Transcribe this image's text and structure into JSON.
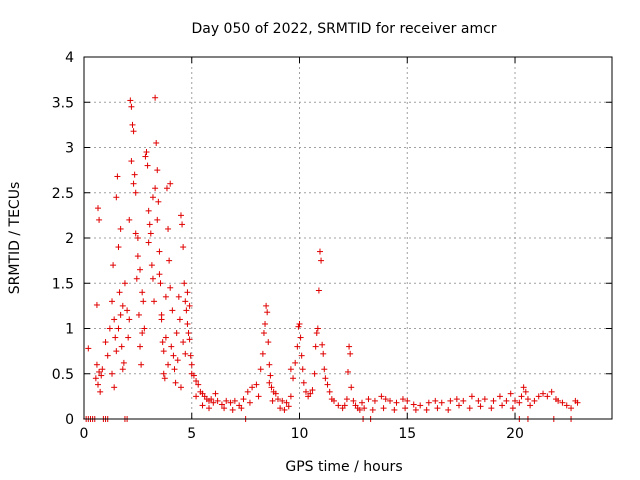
{
  "chart_data": {
    "type": "scatter",
    "title": "Day 050 of 2022, SRMTID for receiver amcr",
    "xlabel": "GPS time / hours",
    "ylabel": "SRMTID / TECUs",
    "xlim": [
      0,
      24.5
    ],
    "ylim": [
      0,
      4
    ],
    "xticks": [
      0,
      5,
      10,
      15,
      20
    ],
    "xtick_labels": [
      "0",
      "5",
      "10",
      "15",
      "20"
    ],
    "yticks": [
      0,
      0.5,
      1,
      1.5,
      2,
      2.5,
      3,
      3.5,
      4
    ],
    "ytick_labels": [
      "0",
      "0.5",
      "1",
      "1.5",
      "2",
      "2.5",
      "3",
      "3.5",
      "4"
    ],
    "grid": true,
    "marker": "plus",
    "series": [
      {
        "name": "SRMTID",
        "color": "#e00000",
        "points": [
          [
            0.2,
            0.78
          ],
          [
            0.1,
            0
          ],
          [
            0.2,
            0
          ],
          [
            0.3,
            0
          ],
          [
            0.4,
            0
          ],
          [
            0.5,
            0
          ],
          [
            0.9,
            0
          ],
          [
            1.0,
            0
          ],
          [
            1.1,
            0
          ],
          [
            1.9,
            0
          ],
          [
            2.0,
            0
          ],
          [
            0.6,
            1.26
          ],
          [
            0.65,
            2.33
          ],
          [
            0.7,
            2.2
          ],
          [
            0.55,
            0.45
          ],
          [
            0.6,
            0.6
          ],
          [
            0.65,
            0.38
          ],
          [
            0.7,
            0.52
          ],
          [
            0.75,
            0.3
          ],
          [
            0.8,
            0.48
          ],
          [
            0.85,
            0.55
          ],
          [
            1.0,
            0.85
          ],
          [
            1.1,
            0.7
          ],
          [
            1.2,
            1.0
          ],
          [
            1.3,
            1.3
          ],
          [
            1.35,
            1.7
          ],
          [
            1.4,
            1.1
          ],
          [
            1.45,
            0.9
          ],
          [
            1.5,
            2.45
          ],
          [
            1.55,
            2.68
          ],
          [
            1.6,
            1.9
          ],
          [
            1.65,
            1.4
          ],
          [
            1.7,
            1.15
          ],
          [
            1.75,
            0.8
          ],
          [
            1.8,
            0.55
          ],
          [
            1.85,
            0.62
          ],
          [
            1.3,
            0.5
          ],
          [
            1.4,
            0.35
          ],
          [
            1.5,
            0.75
          ],
          [
            1.6,
            1.0
          ],
          [
            1.7,
            2.1
          ],
          [
            1.8,
            1.25
          ],
          [
            1.9,
            1.5
          ],
          [
            2.0,
            1.2
          ],
          [
            2.05,
            0.9
          ],
          [
            2.1,
            1.1
          ],
          [
            2.1,
            2.2
          ],
          [
            2.15,
            3.52
          ],
          [
            2.2,
            3.45
          ],
          [
            2.25,
            3.25
          ],
          [
            2.3,
            3.18
          ],
          [
            2.35,
            2.7
          ],
          [
            2.4,
            2.5
          ],
          [
            2.45,
            1.55
          ],
          [
            2.5,
            1.8
          ],
          [
            2.55,
            1.15
          ],
          [
            2.6,
            0.8
          ],
          [
            2.65,
            0.6
          ],
          [
            2.7,
            0.95
          ],
          [
            2.75,
            1.3
          ],
          [
            2.2,
            2.85
          ],
          [
            2.3,
            2.6
          ],
          [
            2.4,
            2.05
          ],
          [
            2.5,
            2.0
          ],
          [
            2.6,
            1.65
          ],
          [
            2.7,
            1.4
          ],
          [
            2.8,
            1.0
          ],
          [
            2.85,
            2.9
          ],
          [
            2.9,
            2.95
          ],
          [
            2.95,
            2.8
          ],
          [
            3.0,
            2.3
          ],
          [
            3.0,
            1.95
          ],
          [
            3.05,
            2.15
          ],
          [
            3.1,
            2.05
          ],
          [
            3.15,
            1.7
          ],
          [
            3.2,
            1.55
          ],
          [
            3.25,
            1.3
          ],
          [
            3.3,
            3.55
          ],
          [
            3.35,
            3.05
          ],
          [
            3.4,
            2.75
          ],
          [
            3.45,
            2.4
          ],
          [
            3.5,
            1.85
          ],
          [
            3.55,
            1.5
          ],
          [
            3.6,
            1.15
          ],
          [
            3.65,
            0.85
          ],
          [
            3.7,
            0.5
          ],
          [
            3.75,
            0.45
          ],
          [
            3.2,
            2.45
          ],
          [
            3.3,
            2.55
          ],
          [
            3.4,
            2.2
          ],
          [
            3.5,
            1.6
          ],
          [
            3.6,
            1.1
          ],
          [
            3.7,
            0.75
          ],
          [
            3.8,
            1.35
          ],
          [
            3.85,
            2.55
          ],
          [
            3.9,
            2.1
          ],
          [
            3.95,
            1.75
          ],
          [
            4.0,
            1.45
          ],
          [
            3.8,
            0.9
          ],
          [
            3.9,
            0.6
          ],
          [
            4.0,
            2.6
          ],
          [
            4.05,
            0.8
          ],
          [
            4.1,
            1.2
          ],
          [
            4.15,
            0.7
          ],
          [
            4.2,
            0.55
          ],
          [
            4.25,
            0.4
          ],
          [
            4.3,
            0.95
          ],
          [
            4.35,
            0.65
          ],
          [
            4.4,
            1.35
          ],
          [
            4.45,
            1.1
          ],
          [
            4.5,
            0.35
          ],
          [
            4.5,
            2.25
          ],
          [
            4.55,
            2.15
          ],
          [
            4.6,
            1.9
          ],
          [
            4.65,
            1.5
          ],
          [
            4.7,
            1.3
          ],
          [
            4.75,
            1.2
          ],
          [
            4.8,
            1.05
          ],
          [
            4.85,
            0.95
          ],
          [
            4.9,
            0.88
          ],
          [
            4.95,
            0.7
          ],
          [
            5.0,
            0.6
          ],
          [
            4.6,
            0.85
          ],
          [
            4.7,
            0.72
          ],
          [
            4.8,
            1.4
          ],
          [
            4.9,
            1.25
          ],
          [
            5.0,
            0.5
          ],
          [
            5.1,
            0.48
          ],
          [
            5.2,
            0.42
          ],
          [
            5.3,
            0.38
          ],
          [
            5.4,
            0.3
          ],
          [
            5.5,
            0.28
          ],
          [
            5.6,
            0.25
          ],
          [
            5.7,
            0.22
          ],
          [
            5.8,
            0.2
          ],
          [
            5.9,
            0.22
          ],
          [
            6.0,
            0.18
          ],
          [
            6.2,
            0.2
          ],
          [
            6.4,
            0.16
          ],
          [
            6.6,
            0.2
          ],
          [
            6.8,
            0.18
          ],
          [
            7.0,
            0.2
          ],
          [
            7.2,
            0.15
          ],
          [
            7.4,
            0.22
          ],
          [
            7.6,
            0.3
          ],
          [
            7.8,
            0.35
          ],
          [
            8.0,
            0.38
          ],
          [
            5.2,
            0.25
          ],
          [
            5.5,
            0.15
          ],
          [
            5.8,
            0.12
          ],
          [
            6.1,
            0.28
          ],
          [
            6.5,
            0.12
          ],
          [
            6.9,
            0.1
          ],
          [
            7.3,
            0.12
          ],
          [
            7.7,
            0.18
          ],
          [
            8.1,
            0.25
          ],
          [
            7.5,
            0
          ],
          [
            8.2,
            0.55
          ],
          [
            8.3,
            0.72
          ],
          [
            8.35,
            0.95
          ],
          [
            8.4,
            1.05
          ],
          [
            8.45,
            1.25
          ],
          [
            8.5,
            1.18
          ],
          [
            8.55,
            0.85
          ],
          [
            8.6,
            0.6
          ],
          [
            8.65,
            0.48
          ],
          [
            8.7,
            0.35
          ],
          [
            8.8,
            0.3
          ],
          [
            8.9,
            0.28
          ],
          [
            9.0,
            0.22
          ],
          [
            9.2,
            0.2
          ],
          [
            9.4,
            0.18
          ],
          [
            9.6,
            0.25
          ],
          [
            8.6,
            0.4
          ],
          [
            8.75,
            0.2
          ],
          [
            9.1,
            0.12
          ],
          [
            9.3,
            0.1
          ],
          [
            9.5,
            0.14
          ],
          [
            9.6,
            0.55
          ],
          [
            9.7,
            0.45
          ],
          [
            9.8,
            0.62
          ],
          [
            9.9,
            0.8
          ],
          [
            9.95,
            1.02
          ],
          [
            10.0,
            1.05
          ],
          [
            10.05,
            0.9
          ],
          [
            10.1,
            0.7
          ],
          [
            10.15,
            0.55
          ],
          [
            10.2,
            0.4
          ],
          [
            10.3,
            0.3
          ],
          [
            10.4,
            0.25
          ],
          [
            10.5,
            0.28
          ],
          [
            10.6,
            0.32
          ],
          [
            10.7,
            0.5
          ],
          [
            10.75,
            0.8
          ],
          [
            10.8,
            0.95
          ],
          [
            10.85,
            1.0
          ],
          [
            10.9,
            1.42
          ],
          [
            10.95,
            1.85
          ],
          [
            11.0,
            1.75
          ],
          [
            11.05,
            0.82
          ],
          [
            11.1,
            0.72
          ],
          [
            11.15,
            0.55
          ],
          [
            11.2,
            0.45
          ],
          [
            11.3,
            0.38
          ],
          [
            11.4,
            0.3
          ],
          [
            11.5,
            0.22
          ],
          [
            11.6,
            0.2
          ],
          [
            11.8,
            0.15
          ],
          [
            12.0,
            0.12
          ],
          [
            12.1,
            0.15
          ],
          [
            12.2,
            0.22
          ],
          [
            12.25,
            0.52
          ],
          [
            12.3,
            0.8
          ],
          [
            12.35,
            0.72
          ],
          [
            12.4,
            0.35
          ],
          [
            12.5,
            0.2
          ],
          [
            12.6,
            0.15
          ],
          [
            12.7,
            0.12
          ],
          [
            12.8,
            0.1
          ],
          [
            12.9,
            0.18
          ],
          [
            13.0,
            0.12
          ],
          [
            12.95,
            0
          ],
          [
            13.3,
            0
          ],
          [
            13.2,
            0.22
          ],
          [
            13.5,
            0.2
          ],
          [
            13.8,
            0.25
          ],
          [
            14.0,
            0.22
          ],
          [
            14.2,
            0.2
          ],
          [
            14.5,
            0.18
          ],
          [
            14.8,
            0.22
          ],
          [
            15.0,
            0.2
          ],
          [
            15.3,
            0.16
          ],
          [
            15.6,
            0.15
          ],
          [
            16.0,
            0.18
          ],
          [
            16.3,
            0.2
          ],
          [
            16.6,
            0.18
          ],
          [
            17.0,
            0.2
          ],
          [
            17.3,
            0.22
          ],
          [
            17.6,
            0.2
          ],
          [
            18.0,
            0.25
          ],
          [
            18.3,
            0.2
          ],
          [
            18.6,
            0.22
          ],
          [
            19.0,
            0.2
          ],
          [
            19.3,
            0.25
          ],
          [
            19.6,
            0.2
          ],
          [
            19.8,
            0.28
          ],
          [
            13.4,
            0.1
          ],
          [
            13.9,
            0.12
          ],
          [
            14.4,
            0.1
          ],
          [
            14.9,
            0.12
          ],
          [
            15.4,
            0.1
          ],
          [
            15.9,
            0.1
          ],
          [
            16.4,
            0.12
          ],
          [
            16.9,
            0.1
          ],
          [
            17.4,
            0.15
          ],
          [
            17.9,
            0.12
          ],
          [
            18.4,
            0.14
          ],
          [
            18.9,
            0.12
          ],
          [
            19.4,
            0.15
          ],
          [
            19.9,
            0.12
          ],
          [
            20.0,
            0.2
          ],
          [
            20.2,
            0.18
          ],
          [
            20.3,
            0.25
          ],
          [
            20.4,
            0.35
          ],
          [
            20.5,
            0.3
          ],
          [
            20.6,
            0.22
          ],
          [
            20.7,
            0.15
          ],
          [
            20.9,
            0.2
          ],
          [
            21.1,
            0.25
          ],
          [
            21.3,
            0.28
          ],
          [
            21.5,
            0.25
          ],
          [
            21.7,
            0.3
          ],
          [
            21.9,
            0.22
          ],
          [
            20.2,
            0
          ],
          [
            20.6,
            0
          ],
          [
            21.8,
            0
          ],
          [
            22.6,
            0
          ],
          [
            22.0,
            0.2
          ],
          [
            22.2,
            0.18
          ],
          [
            22.4,
            0.15
          ],
          [
            22.6,
            0.12
          ],
          [
            22.8,
            0.2
          ],
          [
            22.9,
            0.18
          ]
        ]
      }
    ]
  }
}
